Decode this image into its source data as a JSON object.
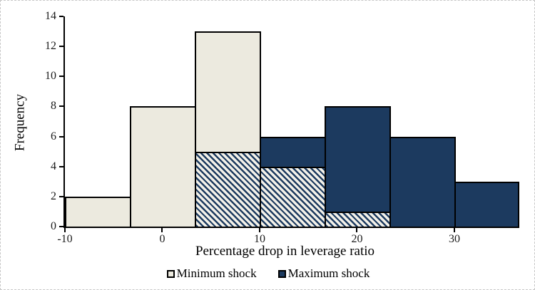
{
  "chart_data": {
    "type": "bar",
    "subtype": "overlapping-histograms",
    "title": "",
    "xlabel": "Percentage drop in leverage ratio",
    "ylabel": "Frequency",
    "ylim": [
      0,
      14
    ],
    "xlim": [
      -10,
      36.67
    ],
    "yticks": [
      0,
      2,
      4,
      6,
      8,
      10,
      12,
      14
    ],
    "xticks": [
      -10,
      0,
      10,
      20,
      30
    ],
    "xtick_labels": [
      "-10",
      "0",
      "10",
      "20",
      "30"
    ],
    "bin_edges": [
      -10,
      -3.33,
      3.33,
      10,
      16.67,
      23.33,
      30,
      36.67
    ],
    "grid": false,
    "legend_position": "bottom",
    "series": [
      {
        "name": "Minimum shock",
        "values": [
          2,
          8,
          13,
          4,
          1,
          0,
          0
        ],
        "fill": "#eceadf"
      },
      {
        "name": "Maximum shock",
        "values": [
          0,
          0,
          5,
          6,
          8,
          6,
          3
        ],
        "fill": "#1c3a5f"
      }
    ],
    "overlap_values": [
      0,
      0,
      5,
      4,
      1,
      0,
      0
    ],
    "overlap_style": "navy diagonal hatch stripes on cream where the two histograms overlap",
    "colors": {
      "min_shock_fill": "#eceadf",
      "max_shock_fill": "#1c3a5f",
      "hatch_stripe": "#1c3a5f",
      "hatch_background": "#f3f1e9",
      "bar_border": "#000000",
      "axis": "#000000",
      "frame_border": "#c8c8c8"
    }
  }
}
